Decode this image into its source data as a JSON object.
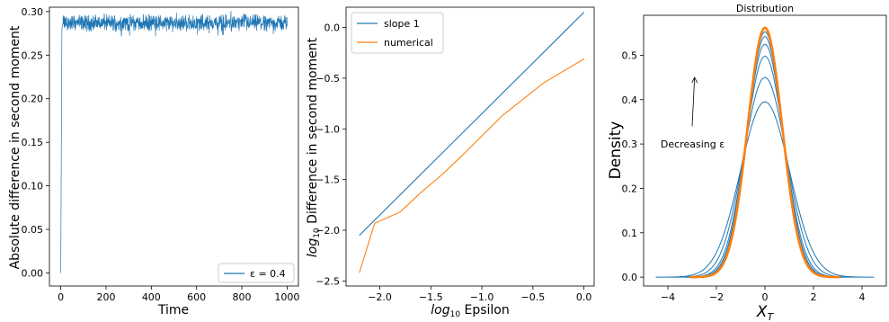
{
  "chart_data": [
    {
      "type": "line",
      "title": "",
      "xlabel": "Time",
      "ylabel": "Absolute difference in second moment",
      "xlim": [
        -50,
        1050
      ],
      "ylim": [
        -0.015,
        0.305
      ],
      "xticks": [
        0,
        200,
        400,
        600,
        800,
        1000
      ],
      "yticks": [
        0.0,
        0.05,
        0.1,
        0.15,
        0.2,
        0.25,
        0.3
      ],
      "grid": false,
      "legend": "bottom-right",
      "colors": {
        "series": "#1f77b4"
      },
      "series": [
        {
          "name": "ε = 0.4",
          "noisy_around": 0.287,
          "noise_range": [
            0.271,
            0.301
          ],
          "x": [
            0,
            5,
            10,
            1000
          ],
          "values": [
            0.0,
            0.28,
            0.287,
            0.287
          ]
        }
      ]
    },
    {
      "type": "line",
      "title": "",
      "xlabel": "log10 Epsilon",
      "ylabel": "log10 Difference in second moment",
      "xlim": [
        -2.33,
        0.1
      ],
      "ylim": [
        -2.55,
        0.2
      ],
      "xticks": [
        -2.0,
        -1.5,
        -1.0,
        -0.5,
        0.0
      ],
      "yticks": [
        -2.5,
        -2.0,
        -1.5,
        -1.0,
        -0.5,
        0.0
      ],
      "grid": false,
      "legend": "top-left",
      "colors": {
        "slope": "#1f77b4",
        "numerical": "#ff7f0e"
      },
      "series": [
        {
          "name": "slope 1",
          "x": [
            -2.2,
            0.0
          ],
          "values": [
            -2.05,
            0.15
          ]
        },
        {
          "name": "numerical",
          "x": [
            -2.2,
            -2.05,
            -1.8,
            -1.6,
            -1.4,
            -1.2,
            -1.0,
            -0.8,
            -0.4,
            0.0
          ],
          "values": [
            -2.42,
            -1.93,
            -1.82,
            -1.63,
            -1.46,
            -1.27,
            -1.07,
            -0.87,
            -0.55,
            -0.31
          ]
        }
      ]
    },
    {
      "type": "line",
      "title": "Distribution",
      "xlabel": "X_T",
      "ylabel": "Density",
      "xlim": [
        -5.0,
        5.0
      ],
      "ylim": [
        -0.02,
        0.59
      ],
      "xticks": [
        -4,
        -2,
        0,
        2,
        4
      ],
      "yticks": [
        0.0,
        0.1,
        0.2,
        0.3,
        0.4,
        0.5
      ],
      "grid": false,
      "legend": "none",
      "colors": {
        "curves": "#1f77b4",
        "limit": "#ff7f0e"
      },
      "annotation": {
        "text": "Decreasing ε",
        "text_at": [
          -4.3,
          0.3
        ],
        "arrow_from": [
          -3.0,
          0.34
        ],
        "arrow_to": [
          -2.9,
          0.45
        ]
      },
      "series": [
        {
          "role": "epsilon-curve",
          "peak": 0.395,
          "sigma": 1.01,
          "support": 4.5
        },
        {
          "role": "epsilon-curve",
          "peak": 0.45,
          "sigma": 0.887,
          "support": 4.0
        },
        {
          "role": "epsilon-curve",
          "peak": 0.498,
          "sigma": 0.8,
          "support": 3.6
        },
        {
          "role": "epsilon-curve",
          "peak": 0.525,
          "sigma": 0.76,
          "support": 3.3
        },
        {
          "role": "epsilon-curve",
          "peak": 0.542,
          "sigma": 0.736,
          "support": 3.2
        },
        {
          "role": "epsilon-curve",
          "peak": 0.553,
          "sigma": 0.722,
          "support": 3.1
        },
        {
          "role": "limit-curve",
          "peak": 0.562,
          "sigma": 0.71,
          "support": 3.1
        }
      ]
    }
  ]
}
